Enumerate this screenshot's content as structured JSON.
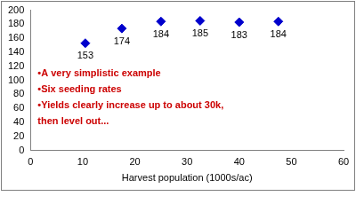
{
  "chart_data": {
    "type": "scatter",
    "x": [
      10.5,
      17.5,
      25,
      32.5,
      40,
      47.5
    ],
    "values": [
      153,
      174,
      184,
      185,
      183,
      184
    ],
    "color": "#0000cc",
    "marker": "diamond",
    "data_labels": true,
    "x_label": "Harvest population (1000s/ac)",
    "xlim": [
      0,
      60
    ],
    "xticks": [
      0,
      10,
      20,
      30,
      40,
      50,
      60
    ],
    "ylim": [
      0,
      200
    ],
    "yticks": [
      0,
      20,
      40,
      60,
      80,
      100,
      120,
      140,
      160,
      180,
      200
    ],
    "grid": false,
    "annotations": [
      "•A very simplistic example",
      "•Six seeding rates",
      "•Yields clearly increase up to about 30k,\nthen level out..."
    ]
  }
}
